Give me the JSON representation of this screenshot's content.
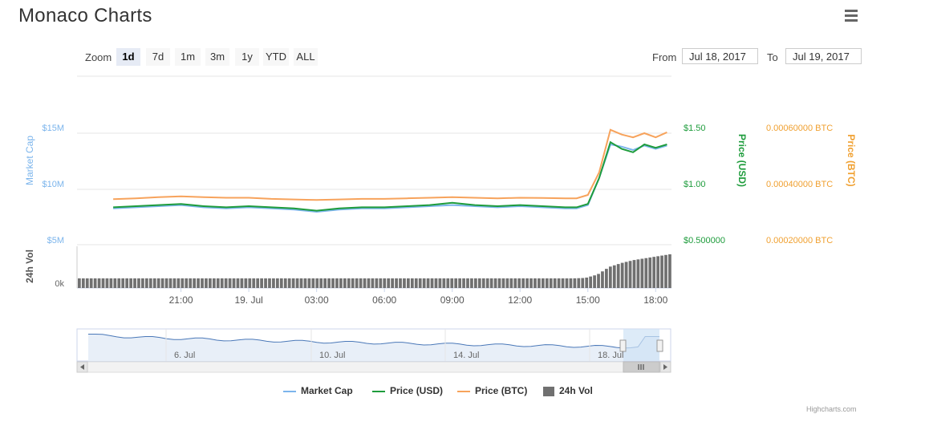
{
  "header": {
    "title": "Monaco Charts",
    "menu_icon": "hamburger-menu-icon"
  },
  "range_selector": {
    "zoom_label": "Zoom",
    "buttons": [
      "1d",
      "7d",
      "1m",
      "3m",
      "1y",
      "YTD",
      "ALL"
    ],
    "selected": "1d",
    "from_label": "From",
    "from_value": "Jul 18, 2017",
    "to_label": "To",
    "to_value": "Jul 19, 2017"
  },
  "colors": {
    "market_cap": "#7cb5ec",
    "price_usd": "#1e9c3c",
    "price_btc": "#f7a35c",
    "volume": "#707070",
    "navigator_mask": "#cfe2f5",
    "axis_market_cap": "#7cb5ec",
    "axis_usd": "#1e9c3c",
    "axis_btc": "#f0a030"
  },
  "chart_data": {
    "type": "line",
    "title": "Monaco Charts",
    "x_tick_labels": [
      "21:00",
      "19. Jul",
      "03:00",
      "06:00",
      "09:00",
      "12:00",
      "15:00",
      "18:00"
    ],
    "y_axes": {
      "market_cap": {
        "title": "Market Cap",
        "ticks": [
          "$15M",
          "$10M",
          "$5M"
        ],
        "values": [
          15,
          10,
          5
        ],
        "unit": "M USD"
      },
      "price_usd": {
        "title": "Price (USD)",
        "ticks": [
          "$1.50",
          "$1.00",
          "$0.500000"
        ],
        "values": [
          1.5,
          1.0,
          0.5
        ]
      },
      "price_btc": {
        "title": "Price (BTC)",
        "ticks": [
          "0.00060000 BTC",
          "0.00040000 BTC",
          "0.00020000 BTC"
        ],
        "values": [
          0.0006,
          0.0004,
          0.0002
        ]
      },
      "volume": {
        "title": "24h Vol",
        "ticks": [
          "0k"
        ]
      }
    },
    "x": [
      "18:00",
      "19:00",
      "20:00",
      "21:00",
      "22:00",
      "23:00",
      "00:00",
      "01:00",
      "02:00",
      "03:00",
      "04:00",
      "05:00",
      "06:00",
      "07:00",
      "08:00",
      "09:00",
      "10:00",
      "11:00",
      "12:00",
      "13:00",
      "14:00",
      "14:30",
      "15:00",
      "15:30",
      "16:00",
      "16:30",
      "17:00",
      "17:30",
      "18:00",
      "18:30"
    ],
    "series": [
      {
        "name": "Market Cap",
        "axis": "market_cap",
        "values": [
          8.3,
          8.4,
          8.5,
          8.6,
          8.4,
          8.3,
          8.4,
          8.3,
          8.2,
          8.0,
          8.2,
          8.3,
          8.3,
          8.4,
          8.5,
          8.6,
          8.5,
          8.4,
          8.5,
          8.4,
          8.3,
          8.3,
          8.6,
          11.0,
          14.0,
          13.8,
          13.5,
          13.9,
          13.6,
          13.9
        ]
      },
      {
        "name": "Price (USD)",
        "axis": "price_usd",
        "values": [
          0.84,
          0.85,
          0.86,
          0.87,
          0.85,
          0.84,
          0.85,
          0.84,
          0.83,
          0.81,
          0.83,
          0.84,
          0.84,
          0.85,
          0.86,
          0.88,
          0.86,
          0.85,
          0.86,
          0.85,
          0.84,
          0.84,
          0.87,
          1.1,
          1.42,
          1.36,
          1.33,
          1.4,
          1.37,
          1.4
        ]
      },
      {
        "name": "Price (BTC)",
        "axis": "price_btc",
        "values": [
          0.000365,
          0.000368,
          0.000372,
          0.000375,
          0.000372,
          0.00037,
          0.00037,
          0.000366,
          0.000364,
          0.000362,
          0.000364,
          0.000366,
          0.000366,
          0.000368,
          0.00037,
          0.000372,
          0.00037,
          0.000368,
          0.00037,
          0.000369,
          0.000368,
          0.000368,
          0.00038,
          0.00046,
          0.000612,
          0.000595,
          0.000585,
          0.0006,
          0.000585,
          0.000603
        ]
      },
      {
        "name": "24h Vol",
        "axis": "volume",
        "values": [
          1,
          1,
          1,
          1,
          1,
          1,
          1,
          1,
          1,
          1,
          1,
          1,
          1,
          1,
          1,
          1,
          1,
          1,
          1,
          1,
          1,
          1,
          1.05,
          1.4,
          2.2,
          2.6,
          2.9,
          3.1,
          3.3,
          3.5
        ]
      }
    ],
    "navigator": {
      "x_tick_labels": [
        "6. Jul",
        "10. Jul",
        "14. Jul",
        "18. Jul"
      ],
      "scrollbar_icon": "grip-icon"
    },
    "legend": [
      "Market Cap",
      "Price (USD)",
      "Price (BTC)",
      "24h Vol"
    ],
    "legend_position": "bottom-center",
    "grid": true
  },
  "credits": "Highcharts.com"
}
